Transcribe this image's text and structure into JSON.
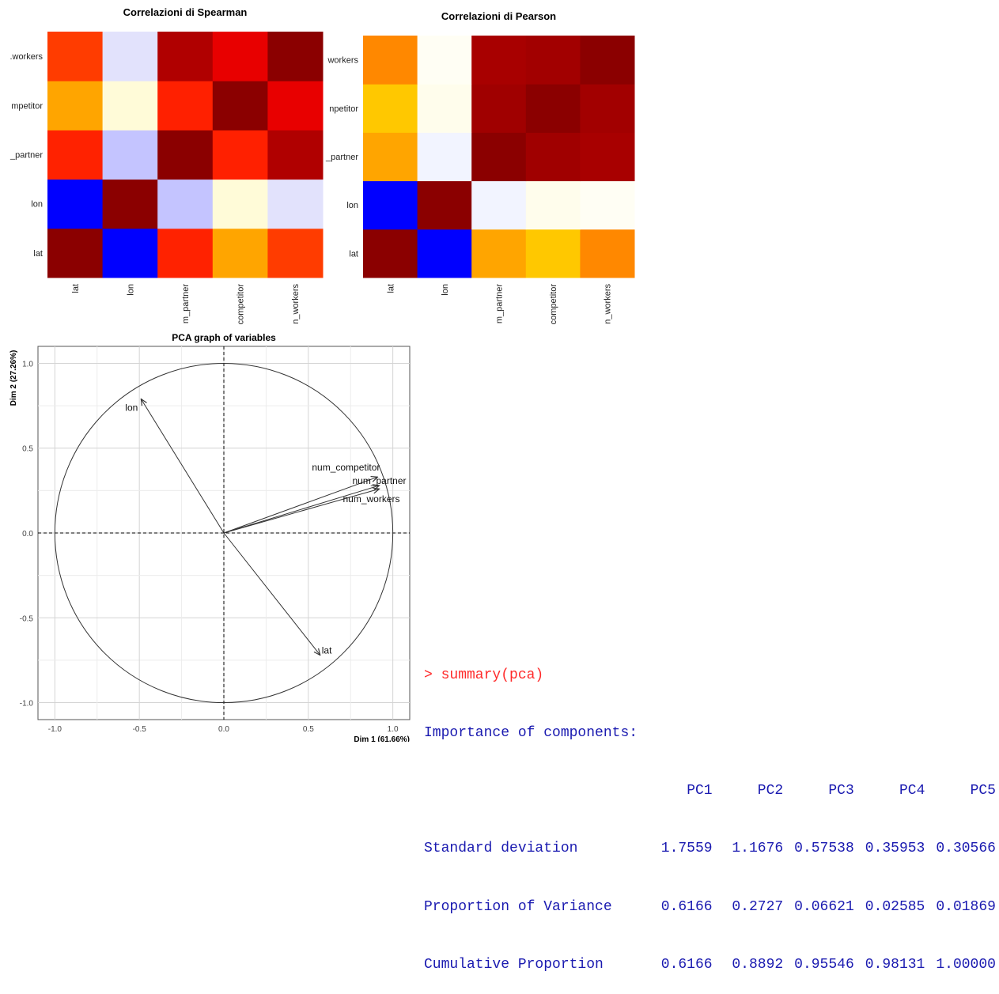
{
  "chart_data": [
    {
      "type": "heatmap",
      "title": "Correlazioni di Spearman",
      "rows_bottom_to_top": [
        "lat",
        "lon",
        "_partner",
        "mpetitor",
        "_workers"
      ],
      "row_labels_display": [
        "lat",
        "lon",
        "_partner",
        "mpetitor",
        ".workers"
      ],
      "columns": [
        "lat",
        "lon",
        "m_partner",
        "competitor",
        "n_workers"
      ],
      "cell_colors_bottom_to_top": [
        [
          "#8b0000",
          "#0000ff",
          "#ff2200",
          "#ffa500",
          "#ff3c00"
        ],
        [
          "#0000ff",
          "#8b0000",
          "#c4c4ff",
          "#fffbd8",
          "#e2e2fc"
        ],
        [
          "#ff2200",
          "#c4c4ff",
          "#8b0000",
          "#ff2000",
          "#b00000"
        ],
        [
          "#ffa500",
          "#fffbd8",
          "#ff2000",
          "#8b0000",
          "#e80000"
        ],
        [
          "#ff3c00",
          "#e2e2fc",
          "#b00000",
          "#e80000",
          "#8b0000"
        ]
      ]
    },
    {
      "type": "heatmap",
      "title": "Correlazioni di Pearson",
      "rows_bottom_to_top": [
        "lat",
        "lon",
        "_partner",
        "mpetitor",
        "workers"
      ],
      "row_labels_display": [
        "lat",
        "lon",
        "_partner",
        "npetitor",
        "workers"
      ],
      "columns": [
        "lat",
        "lon",
        "m_partner",
        "competitor",
        "n_workers"
      ],
      "cell_colors_bottom_to_top": [
        [
          "#8b0000",
          "#0000ff",
          "#ffa500",
          "#ffc800",
          "#ff8800"
        ],
        [
          "#0000ff",
          "#8b0000",
          "#f2f4ff",
          "#fffdec",
          "#fffef4"
        ],
        [
          "#ffa500",
          "#f2f4ff",
          "#8b0000",
          "#a00000",
          "#a80000"
        ],
        [
          "#ffc800",
          "#fffdec",
          "#a00000",
          "#8b0000",
          "#a20000"
        ],
        [
          "#ff8800",
          "#fffef4",
          "#a80000",
          "#a20000",
          "#8b0000"
        ]
      ]
    },
    {
      "type": "scatter",
      "subtype": "pca-correlation-circle",
      "title": "PCA graph of variables",
      "xlabel": "Dim 1 (61.66%)",
      "ylabel": "Dim 2 (27.26%)",
      "xlim": [
        -1.1,
        1.1
      ],
      "ylim": [
        -1.1,
        1.1
      ],
      "xticks": [
        "-1.0",
        "-0.5",
        "0.0",
        "0.5",
        "1.0"
      ],
      "yticks": [
        "-1.0",
        "-0.5",
        "0.0",
        "0.5",
        "1.0"
      ],
      "grid": true,
      "unit_circle": true,
      "vectors": [
        {
          "label": "lon",
          "x": -0.49,
          "y": 0.79
        },
        {
          "label": "num_competitor",
          "x": 0.91,
          "y": 0.33
        },
        {
          "label": "num_partner",
          "x": 0.92,
          "y": 0.28
        },
        {
          "label": "num_workers",
          "x": 0.92,
          "y": 0.26
        },
        {
          "label": "lat",
          "x": 0.57,
          "y": -0.72
        }
      ]
    },
    {
      "type": "table",
      "prompt": "> summary(pca)",
      "heading": "Importance of components:",
      "columns": [
        "PC1",
        "PC2",
        "PC3",
        "PC4",
        "PC5"
      ],
      "rows": [
        {
          "label": "Standard deviation",
          "values": [
            "1.7559",
            "1.1676",
            "0.57538",
            "0.35953",
            "0.30566"
          ]
        },
        {
          "label": "Proportion of Variance",
          "values": [
            "0.6166",
            "0.2727",
            "0.06621",
            "0.02585",
            "0.01869"
          ]
        },
        {
          "label": "Cumulative Proportion",
          "values": [
            "0.6166",
            "0.8892",
            "0.95546",
            "0.98131",
            "1.00000"
          ]
        }
      ]
    }
  ]
}
